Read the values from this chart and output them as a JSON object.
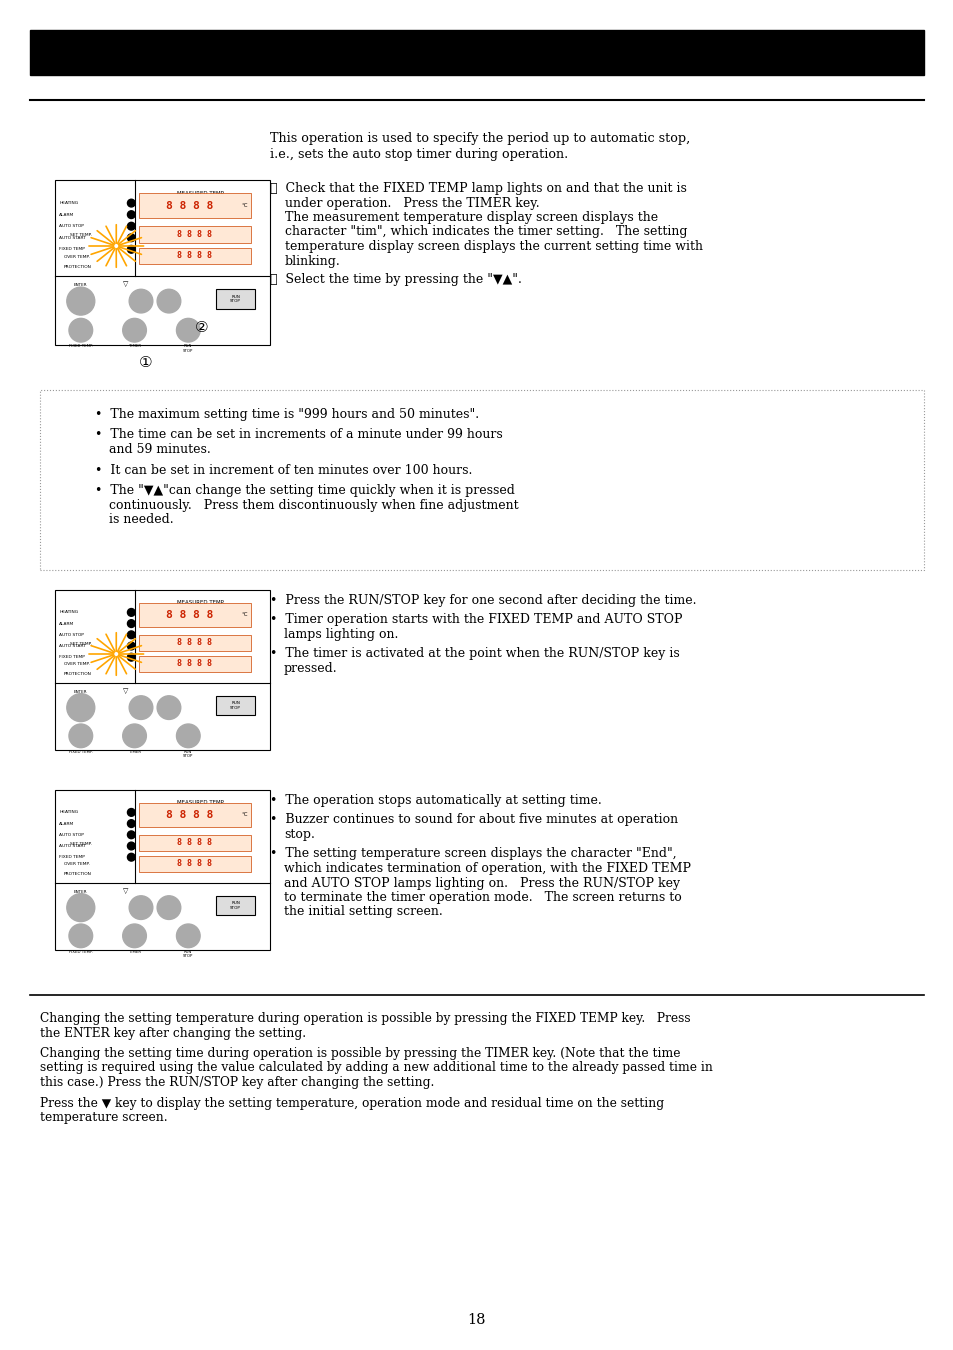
{
  "bg_color": "#ffffff",
  "page_number": "18",
  "intro_text_line1": "This operation is used to specify the period up to automatic stop,",
  "intro_text_line2": "i.e., sets the auto stop timer during operation.",
  "s1_num1": "①",
  "s1_text1a": " Check that the FIXED TEMP lamp lights on and that the unit is",
  "s1_text1b": "    under operation.   Press the TIMER key.",
  "s1_text1c": "    The measurement temperature display screen displays the",
  "s1_text1d": "    character \"tim\", which indicates the timer setting.   The setting",
  "s1_text1e": "    temperature display screen displays the current setting time with",
  "s1_text1f": "    blinking.",
  "s1_num2": "②",
  "s1_text2": " Select the time by pressing the \"▼▲\".",
  "dot_b1": "The maximum setting time is \"999 hours and 50 minutes\".",
  "dot_b2a": "The time can be set in increments of a minute under 99 hours",
  "dot_b2b": "and 59 minutes.",
  "dot_b3": "It can be set in increment of ten minutes over 100 hours.",
  "dot_b4a": "The \"▼▲\"can change the setting time quickly when it is pressed",
  "dot_b4b": "continuously.   Press them discontinuously when fine adjustment",
  "dot_b4c": "is needed.",
  "s2_b1": "Press the RUN/STOP key for one second after deciding the time.",
  "s2_b2a": "Timer operation starts with the FIXED TEMP and AUTO STOP",
  "s2_b2b": "lamps lighting on.",
  "s2_b3a": "The timer is activated at the point when the RUN/STOP key is",
  "s2_b3b": "pressed.",
  "s3_b1": "The operation stops automatically at setting time.",
  "s3_b2a": "Buzzer continues to sound for about five minutes at operation",
  "s3_b2b": "stop.",
  "s3_b3a": "The setting temperature screen displays the character \"End\",",
  "s3_b3b": "which indicates termination of operation, with the FIXED TEMP",
  "s3_b3c": "and AUTO STOP lamps lighting on.   Press the RUN/STOP key",
  "s3_b3d": "to terminate the timer operation mode.   The screen returns to",
  "s3_b3e": "the initial setting screen.",
  "foot1a": "Changing the setting temperature during operation is possible by pressing the FIXED TEMP key.   Press",
  "foot1b": "the ENTER key after changing the setting.",
  "foot2a": "Changing the setting time during operation is possible by pressing the TIMER key. (Note that the time",
  "foot2b": "setting is required using the value calculated by adding a new additional time to the already passed time in",
  "foot2c": "this case.) Press the RUN/STOP key after changing the setting.",
  "foot3a": "Press the ▼ key to display the setting temperature, operation mode and residual time on the setting",
  "foot3b": "temperature screen."
}
